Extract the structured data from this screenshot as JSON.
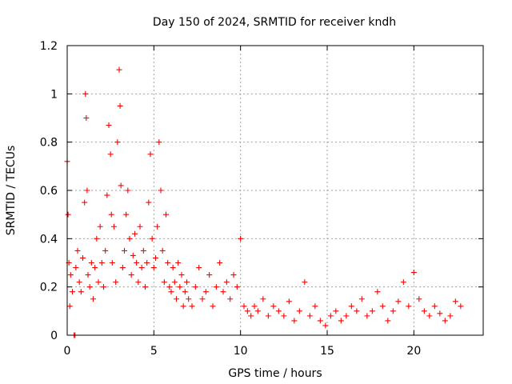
{
  "chart_data": {
    "type": "scatter",
    "title": "Day 150 of 2024, SRMTID for receiver kndh",
    "xlabel": "GPS time / hours",
    "ylabel": "SRMTID / TECUs",
    "xlim": [
      0,
      24
    ],
    "ylim": [
      0,
      1.2
    ],
    "x_ticks": [
      0,
      5,
      10,
      15,
      20
    ],
    "x_tick_labels": [
      "0",
      "5",
      "10",
      "15",
      "20"
    ],
    "y_ticks": [
      0,
      0.2,
      0.4,
      0.6,
      0.8,
      1.0,
      1.2
    ],
    "y_tick_labels": [
      "0",
      "0.2",
      "0.4",
      "0.6",
      "0.8",
      "1",
      "1.2"
    ],
    "grid": true,
    "legend": "none",
    "marker": "+",
    "series": [
      {
        "name": "SRMTID",
        "color": "#ff0000",
        "x": [
          0.0,
          0.05,
          0.1,
          0.15,
          0.2,
          0.3,
          0.4,
          0.45,
          0.5,
          0.6,
          0.7,
          0.8,
          0.9,
          1.0,
          1.05,
          1.1,
          1.15,
          1.2,
          1.3,
          1.4,
          1.5,
          1.6,
          1.7,
          1.8,
          1.9,
          2.0,
          2.1,
          2.2,
          2.3,
          2.4,
          2.5,
          2.55,
          2.6,
          2.7,
          2.8,
          2.9,
          3.0,
          3.05,
          3.1,
          3.2,
          3.3,
          3.4,
          3.5,
          3.6,
          3.7,
          3.8,
          3.9,
          4.0,
          4.1,
          4.2,
          4.3,
          4.4,
          4.5,
          4.6,
          4.7,
          4.8,
          4.9,
          5.0,
          5.1,
          5.2,
          5.3,
          5.4,
          5.5,
          5.6,
          5.7,
          5.8,
          5.9,
          6.0,
          6.1,
          6.2,
          6.3,
          6.4,
          6.5,
          6.6,
          6.7,
          6.8,
          6.9,
          7.0,
          7.2,
          7.4,
          7.6,
          7.8,
          8.0,
          8.2,
          8.4,
          8.6,
          8.8,
          9.0,
          9.2,
          9.4,
          9.6,
          9.8,
          10.0,
          10.2,
          10.4,
          10.6,
          10.8,
          11.0,
          11.3,
          11.6,
          11.9,
          12.2,
          12.5,
          12.8,
          13.1,
          13.4,
          13.7,
          14.0,
          14.3,
          14.6,
          14.9,
          15.2,
          15.5,
          15.8,
          16.1,
          16.4,
          16.7,
          17.0,
          17.3,
          17.6,
          17.9,
          18.2,
          18.5,
          18.8,
          19.1,
          19.4,
          19.7,
          20.0,
          20.3,
          20.6,
          20.9,
          21.2,
          21.5,
          21.8,
          22.1,
          22.4,
          22.7
        ],
        "y": [
          0.72,
          0.5,
          0.3,
          0.12,
          0.25,
          0.18,
          0.0,
          0.0,
          0.28,
          0.35,
          0.22,
          0.18,
          0.32,
          0.55,
          1.0,
          0.9,
          0.6,
          0.25,
          0.2,
          0.3,
          0.15,
          0.28,
          0.4,
          0.22,
          0.45,
          0.3,
          0.2,
          0.35,
          0.58,
          0.87,
          0.75,
          0.5,
          0.3,
          0.45,
          0.22,
          0.8,
          1.1,
          0.95,
          0.62,
          0.28,
          0.35,
          0.5,
          0.6,
          0.4,
          0.25,
          0.33,
          0.42,
          0.3,
          0.22,
          0.45,
          0.28,
          0.35,
          0.2,
          0.3,
          0.55,
          0.75,
          0.4,
          0.28,
          0.32,
          0.45,
          0.8,
          0.6,
          0.35,
          0.22,
          0.5,
          0.3,
          0.2,
          0.18,
          0.28,
          0.22,
          0.15,
          0.3,
          0.2,
          0.25,
          0.12,
          0.18,
          0.22,
          0.15,
          0.12,
          0.2,
          0.28,
          0.15,
          0.18,
          0.25,
          0.12,
          0.2,
          0.3,
          0.18,
          0.22,
          0.15,
          0.25,
          0.2,
          0.4,
          0.12,
          0.1,
          0.08,
          0.12,
          0.1,
          0.15,
          0.08,
          0.12,
          0.1,
          0.08,
          0.14,
          0.06,
          0.1,
          0.22,
          0.08,
          0.12,
          0.06,
          0.04,
          0.08,
          0.1,
          0.06,
          0.08,
          0.12,
          0.1,
          0.15,
          0.08,
          0.1,
          0.18,
          0.12,
          0.06,
          0.1,
          0.14,
          0.22,
          0.12,
          0.26,
          0.15,
          0.1,
          0.08,
          0.12,
          0.09,
          0.06,
          0.08,
          0.14,
          0.12
        ]
      }
    ]
  }
}
